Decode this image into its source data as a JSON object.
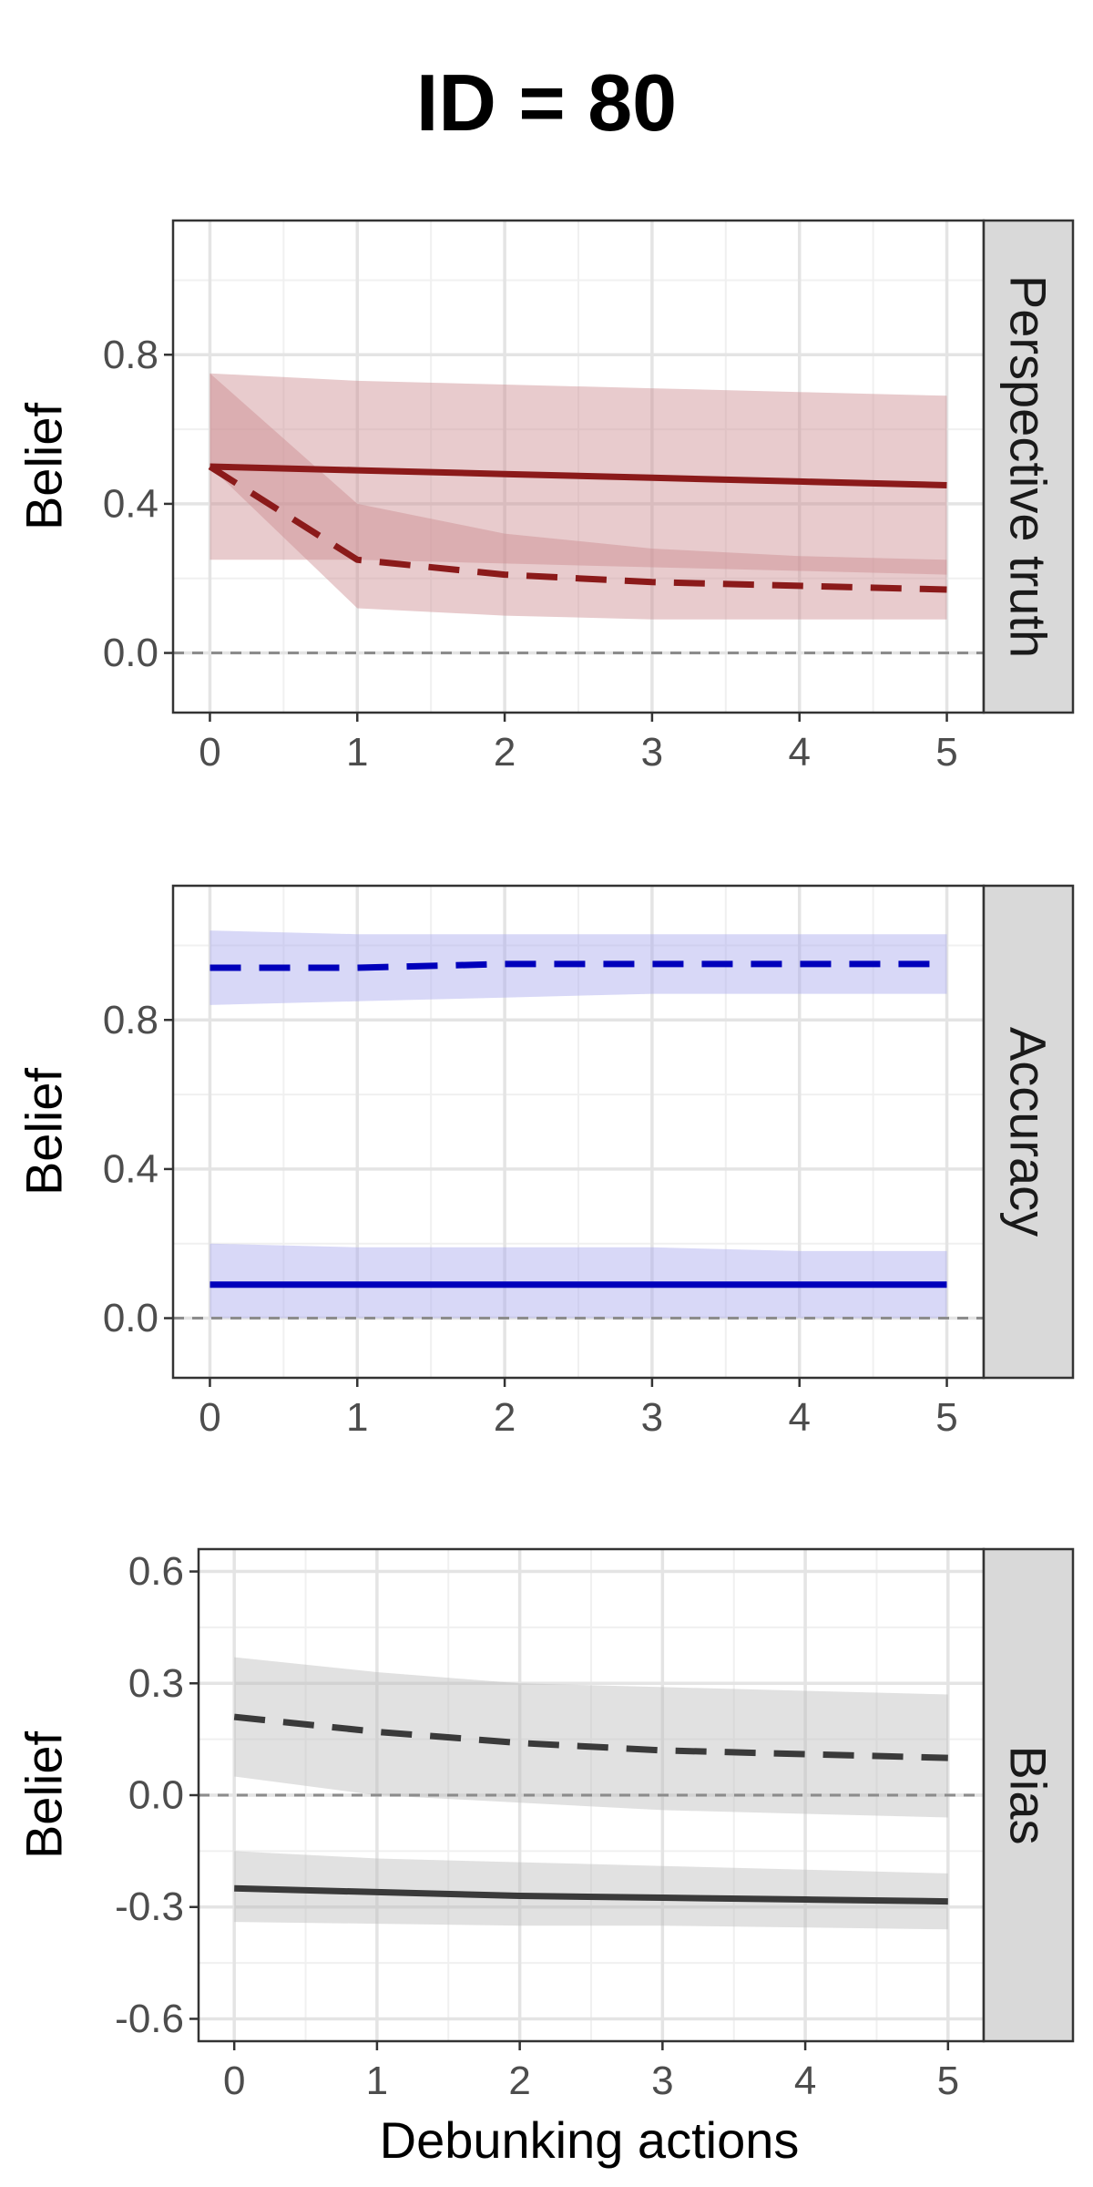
{
  "title": "ID = 80",
  "xlabel": "Debunking actions",
  "chart_data": [
    {
      "type": "line",
      "panel": "Perspective truth",
      "ylabel": "Belief",
      "x": [
        0,
        1,
        2,
        3,
        4,
        5
      ],
      "xlim": [
        -0.25,
        5.25
      ],
      "ylim": [
        -0.16,
        1.16
      ],
      "yticks": [
        0.0,
        0.4,
        0.8
      ],
      "ytick_labels": [
        "0.0",
        "0.4",
        "0.8"
      ],
      "xticks": [
        0,
        1,
        2,
        3,
        4,
        5
      ],
      "zero_line": 0,
      "grid": true,
      "color": "#8B1A1A",
      "band_color": "#CD8C91",
      "series": [
        {
          "style": "solid",
          "values": [
            0.5,
            0.49,
            0.48,
            0.47,
            0.46,
            0.45
          ],
          "lower": [
            0.25,
            0.25,
            0.24,
            0.23,
            0.22,
            0.21
          ],
          "upper": [
            0.75,
            0.73,
            0.72,
            0.71,
            0.7,
            0.69
          ]
        },
        {
          "style": "dashed",
          "values": [
            0.5,
            0.25,
            0.21,
            0.19,
            0.18,
            0.17
          ],
          "lower": [
            0.5,
            0.12,
            0.1,
            0.09,
            0.09,
            0.09
          ],
          "upper": [
            0.75,
            0.4,
            0.32,
            0.28,
            0.26,
            0.25
          ]
        }
      ]
    },
    {
      "type": "line",
      "panel": "Accuracy",
      "ylabel": "Belief",
      "x": [
        0,
        1,
        2,
        3,
        4,
        5
      ],
      "xlim": [
        -0.25,
        5.25
      ],
      "ylim": [
        -0.16,
        1.16
      ],
      "yticks": [
        0.0,
        0.4,
        0.8
      ],
      "ytick_labels": [
        "0.0",
        "0.4",
        "0.8"
      ],
      "xticks": [
        0,
        1,
        2,
        3,
        4,
        5
      ],
      "zero_line": 0,
      "grid": true,
      "color": "#0000BB",
      "band_color": "#A8A8EE",
      "series": [
        {
          "style": "solid",
          "values": [
            0.09,
            0.09,
            0.09,
            0.09,
            0.09,
            0.09
          ],
          "lower": [
            0.0,
            0.0,
            0.0,
            0.0,
            0.0,
            0.0
          ],
          "upper": [
            0.2,
            0.19,
            0.19,
            0.19,
            0.18,
            0.18
          ]
        },
        {
          "style": "dashed",
          "values": [
            0.94,
            0.94,
            0.95,
            0.95,
            0.95,
            0.95
          ],
          "lower": [
            0.84,
            0.85,
            0.86,
            0.87,
            0.87,
            0.87
          ],
          "upper": [
            1.04,
            1.03,
            1.03,
            1.03,
            1.03,
            1.03
          ]
        }
      ]
    },
    {
      "type": "line",
      "panel": "Bias",
      "ylabel": "Belief",
      "x": [
        0,
        1,
        2,
        3,
        4,
        5
      ],
      "xlim": [
        -0.25,
        5.25
      ],
      "ylim": [
        -0.66,
        0.66
      ],
      "yticks": [
        -0.6,
        -0.3,
        0.0,
        0.3,
        0.6
      ],
      "ytick_labels": [
        "-0.6",
        "-0.3",
        "0.0",
        "0.3",
        "0.6"
      ],
      "xticks": [
        0,
        1,
        2,
        3,
        4,
        5
      ],
      "zero_line": 0,
      "grid": true,
      "color": "#3a3a3a",
      "band_color": "#BDBDBD",
      "series": [
        {
          "style": "solid",
          "values": [
            -0.25,
            -0.26,
            -0.27,
            -0.275,
            -0.28,
            -0.285
          ],
          "lower": [
            -0.34,
            -0.345,
            -0.35,
            -0.35,
            -0.355,
            -0.36
          ],
          "upper": [
            -0.15,
            -0.17,
            -0.18,
            -0.19,
            -0.2,
            -0.21
          ]
        },
        {
          "style": "dashed",
          "values": [
            0.21,
            0.17,
            0.14,
            0.12,
            0.11,
            0.1
          ],
          "lower": [
            0.05,
            0.0,
            -0.02,
            -0.04,
            -0.05,
            -0.06
          ],
          "upper": [
            0.37,
            0.33,
            0.3,
            0.29,
            0.28,
            0.27
          ]
        }
      ]
    }
  ]
}
